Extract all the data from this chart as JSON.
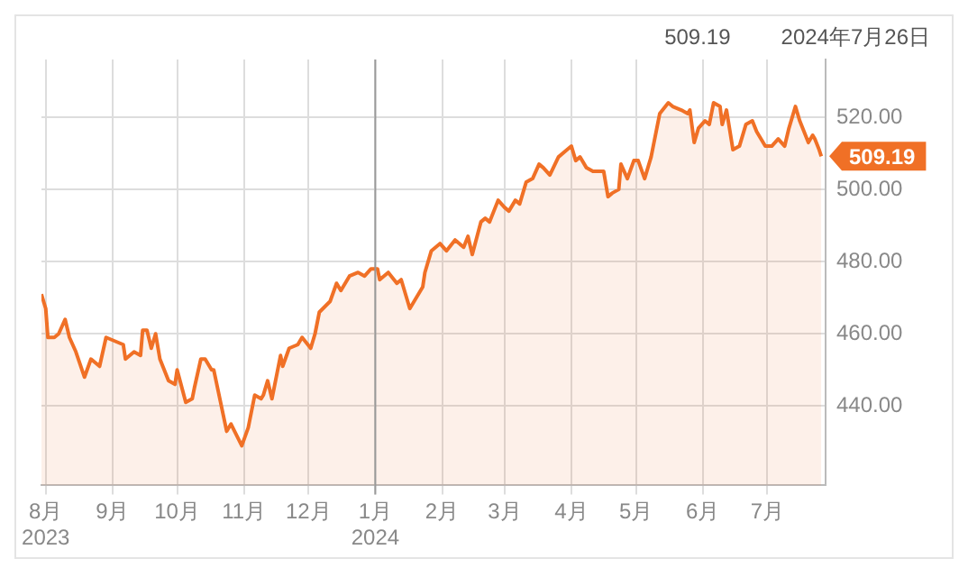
{
  "chart_data": {
    "type": "area",
    "annotations": [
      "509.19",
      "2024年7月26日",
      {
        "text": "509.19",
        "x": "2024-07-26",
        "y": 509.19
      }
    ],
    "series": [
      {
        "color": "#f07026",
        "x": [
          "2023-07-30",
          "2023-08-01",
          "2023-08-02",
          "2023-08-05",
          "2023-08-07",
          "2023-08-10",
          "2023-08-12",
          "2023-08-15",
          "2023-08-19",
          "2023-08-22",
          "2023-08-26",
          "2023-08-29",
          "2023-09-02",
          "2023-09-06",
          "2023-09-07",
          "2023-09-11",
          "2023-09-14",
          "2023-09-15",
          "2023-09-17",
          "2023-09-19",
          "2023-09-21",
          "2023-09-23",
          "2023-09-27",
          "2023-09-30",
          "2023-10-01",
          "2023-10-05",
          "2023-10-08",
          "2023-10-09",
          "2023-10-12",
          "2023-10-14",
          "2023-10-17",
          "2023-10-18",
          "2023-10-24",
          "2023-10-26",
          "2023-10-31",
          "2023-11-03",
          "2023-11-06",
          "2023-11-09",
          "2023-11-10",
          "2023-11-12",
          "2023-11-14",
          "2023-11-18",
          "2023-11-19",
          "2023-11-22",
          "2023-11-26",
          "2023-11-28",
          "2023-12-02",
          "2023-12-04",
          "2023-12-06",
          "2023-12-11",
          "2023-12-14",
          "2023-12-16",
          "2023-12-20",
          "2023-12-24",
          "2023-12-27",
          "2023-12-30",
          "2024-01-02",
          "2024-01-03",
          "2024-01-07",
          "2024-01-11",
          "2024-01-13",
          "2024-01-17",
          "2024-01-20",
          "2024-01-23",
          "2024-01-24",
          "2024-01-27",
          "2024-01-31",
          "2024-02-03",
          "2024-02-07",
          "2024-02-11",
          "2024-02-13",
          "2024-02-15",
          "2024-02-19",
          "2024-02-21",
          "2024-02-23",
          "2024-02-27",
          "2024-03-01",
          "2024-03-03",
          "2024-03-06",
          "2024-03-08",
          "2024-03-11",
          "2024-03-14",
          "2024-03-17",
          "2024-03-19",
          "2024-03-22",
          "2024-03-26",
          "2024-03-30",
          "2024-04-01",
          "2024-04-03",
          "2024-04-05",
          "2024-04-08",
          "2024-04-11",
          "2024-04-14",
          "2024-04-16",
          "2024-04-18",
          "2024-04-20",
          "2024-04-23",
          "2024-04-24",
          "2024-04-27",
          "2024-04-30",
          "2024-05-02",
          "2024-05-05",
          "2024-05-08",
          "2024-05-10",
          "2024-05-12",
          "2024-05-16",
          "2024-05-18",
          "2024-05-22",
          "2024-05-25",
          "2024-05-26",
          "2024-05-28",
          "2024-05-30",
          "2024-06-02",
          "2024-06-04",
          "2024-06-06",
          "2024-06-09",
          "2024-06-10",
          "2024-06-12",
          "2024-06-15",
          "2024-06-18",
          "2024-06-21",
          "2024-06-24",
          "2024-06-26",
          "2024-06-30",
          "2024-07-03",
          "2024-07-06",
          "2024-07-09",
          "2024-07-11",
          "2024-07-14",
          "2024-07-16",
          "2024-07-20",
          "2024-07-22",
          "2024-07-23",
          "2024-07-25",
          "2024-07-26"
        ],
        "values": [
          471,
          467,
          459,
          459,
          460,
          464,
          459,
          455,
          448,
          453,
          451,
          459,
          458,
          457,
          453,
          455,
          454,
          461,
          461,
          456,
          460,
          453,
          447,
          446,
          450,
          441,
          442,
          445,
          453,
          453,
          450,
          450,
          433,
          435,
          429,
          434,
          443,
          442,
          443,
          447,
          442,
          454,
          451,
          456,
          457,
          459,
          456,
          460,
          466,
          469,
          474,
          472,
          476,
          477,
          476,
          478,
          478,
          475,
          477,
          474,
          475,
          467,
          470,
          473,
          477,
          483,
          485,
          483,
          486,
          484,
          487,
          482,
          491,
          492,
          491,
          497,
          495,
          494,
          497,
          496,
          502,
          503,
          507,
          506,
          504,
          509,
          511,
          512,
          508,
          509,
          506,
          505,
          505,
          505,
          498,
          499,
          500,
          507,
          503,
          508,
          508,
          503,
          509,
          515,
          521,
          524,
          523,
          522,
          521,
          522,
          513,
          517,
          519,
          518,
          524,
          523,
          518,
          522,
          511,
          512,
          518,
          519,
          516,
          512,
          512,
          514,
          512,
          517,
          523,
          519,
          513,
          515,
          514,
          511,
          509.19
        ]
      }
    ],
    "xlim": [
      "2023-07-30",
      "2024-07-28"
    ],
    "xticks": [
      {
        "value": "2023-08-01",
        "label": "8月\n2023"
      },
      {
        "value": "2023-09-01",
        "label": "9月"
      },
      {
        "value": "2023-10-01",
        "label": "10月"
      },
      {
        "value": "2023-11-01",
        "label": "11月"
      },
      {
        "value": "2023-12-01",
        "label": "12月"
      },
      {
        "value": "2024-01-01",
        "label": "1月\n2024"
      },
      {
        "value": "2024-02-01",
        "label": "2月"
      },
      {
        "value": "2024-03-01",
        "label": "3月"
      },
      {
        "value": "2024-04-01",
        "label": "4月"
      },
      {
        "value": "2024-05-01",
        "label": "5月"
      },
      {
        "value": "2024-06-01",
        "label": "6月"
      },
      {
        "value": "2024-07-01",
        "label": "7月"
      }
    ],
    "ylim": [
      418,
      536
    ],
    "yticks": [
      {
        "value": 440,
        "label": "440.00"
      },
      {
        "value": 460,
        "label": "460.00"
      },
      {
        "value": 480,
        "label": "480.00"
      },
      {
        "value": 500,
        "label": "500.00"
      },
      {
        "value": 520,
        "label": "520.00"
      }
    ],
    "ref_lines": [
      {
        "axis": "x",
        "value": "2024-01-01",
        "color": "#999999"
      }
    ],
    "grid": true,
    "line_style": "solid",
    "marker": "none"
  }
}
